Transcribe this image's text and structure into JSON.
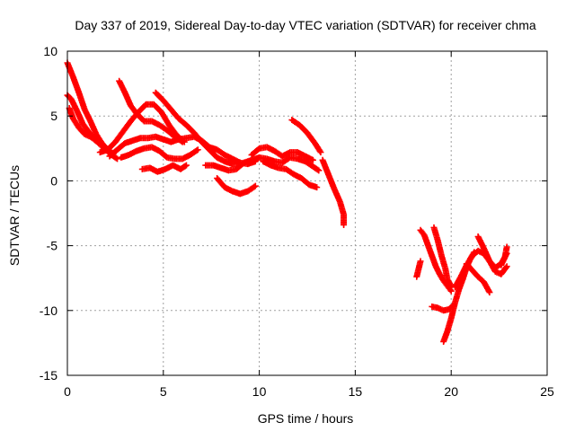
{
  "chart_data": {
    "type": "scatter",
    "title": "Day 337 of 2019, Sidereal Day-to-day VTEC variation (SDTVAR) for receiver chma",
    "xlabel": "GPS time / hours",
    "ylabel": "SDTVAR / TECUs",
    "xlim": [
      0,
      25
    ],
    "ylim": [
      -15,
      10
    ],
    "xticks": [
      0,
      5,
      10,
      15,
      20,
      25
    ],
    "yticks": [
      -15,
      -10,
      -5,
      0,
      5,
      10
    ],
    "grid": true,
    "marker": "+",
    "color": "#ff0000",
    "series": [
      {
        "name": "track-1",
        "x": [
          0.0,
          0.3,
          0.6,
          0.9,
          1.2,
          1.5,
          1.8,
          2.1,
          2.4
        ],
        "y": [
          9.1,
          8.0,
          6.8,
          5.5,
          4.6,
          3.6,
          2.9,
          2.4,
          2.1
        ]
      },
      {
        "name": "track-2",
        "x": [
          0.0,
          0.2,
          0.5,
          0.8,
          1.1,
          1.4,
          1.7,
          2.0,
          2.3,
          2.6
        ],
        "y": [
          6.6,
          6.3,
          5.4,
          4.4,
          3.8,
          3.2,
          2.8,
          2.4,
          2.0,
          1.7
        ]
      },
      {
        "name": "track-3",
        "x": [
          0.1,
          0.3,
          0.6,
          0.9,
          1.2,
          1.5
        ],
        "y": [
          5.6,
          4.8,
          4.1,
          3.6,
          3.4,
          3.1
        ]
      },
      {
        "name": "track-4",
        "x": [
          2.7,
          3.0,
          3.3,
          3.6,
          4.0,
          4.4,
          4.8,
          5.2,
          5.6,
          6.0
        ],
        "y": [
          7.7,
          6.8,
          5.8,
          5.2,
          4.6,
          4.6,
          4.3,
          3.9,
          3.4,
          3.0
        ]
      },
      {
        "name": "track-5",
        "x": [
          1.7,
          2.1,
          2.5,
          2.9,
          3.3,
          3.7,
          4.1,
          4.5,
          4.9,
          5.3,
          5.7,
          6.1
        ],
        "y": [
          2.2,
          2.4,
          3.0,
          3.8,
          4.6,
          5.3,
          5.9,
          5.9,
          5.3,
          4.3,
          3.5,
          3.0
        ]
      },
      {
        "name": "track-6",
        "x": [
          2.2,
          2.6,
          3.0,
          3.4,
          3.8,
          4.2,
          4.6,
          5.0,
          5.4,
          5.8,
          6.2,
          6.6,
          7.0,
          7.4,
          7.8,
          8.2,
          8.6,
          9.0,
          9.4,
          9.8
        ],
        "y": [
          1.9,
          2.4,
          2.9,
          3.1,
          3.3,
          3.3,
          3.4,
          3.2,
          3.0,
          3.2,
          3.3,
          3.4,
          3.1,
          2.6,
          2.4,
          2.0,
          1.7,
          1.4,
          1.3,
          1.5
        ]
      },
      {
        "name": "track-7",
        "x": [
          2.8,
          3.2,
          3.6,
          4.0,
          4.4,
          4.8,
          5.2,
          5.6,
          6.0,
          6.4,
          6.8
        ],
        "y": [
          1.8,
          2.0,
          2.3,
          2.5,
          2.6,
          2.3,
          1.8,
          1.7,
          1.7,
          2.0,
          2.4
        ]
      },
      {
        "name": "track-8",
        "x": [
          3.9,
          4.3,
          4.7,
          5.1,
          5.5,
          5.9,
          6.2
        ],
        "y": [
          0.9,
          1.0,
          0.7,
          0.9,
          1.2,
          0.9,
          1.2
        ]
      },
      {
        "name": "track-9",
        "x": [
          4.6,
          5.0,
          5.4,
          5.8,
          6.2,
          6.6,
          7.0,
          7.4,
          7.8,
          8.2,
          8.6,
          9.0
        ],
        "y": [
          6.8,
          6.2,
          5.5,
          4.8,
          4.3,
          3.7,
          3.0,
          2.4,
          1.8,
          1.5,
          1.3,
          1.4
        ]
      },
      {
        "name": "track-10",
        "x": [
          7.2,
          7.6,
          8.0,
          8.4,
          8.8,
          9.2,
          9.6,
          10.0,
          10.4,
          10.8,
          11.2,
          11.6,
          12.0,
          12.4,
          12.8,
          13.1
        ],
        "y": [
          1.2,
          1.2,
          1.0,
          0.8,
          0.9,
          1.4,
          1.6,
          1.8,
          1.7,
          1.5,
          1.4,
          1.8,
          1.7,
          1.5,
          1.1,
          0.8
        ]
      },
      {
        "name": "track-11",
        "x": [
          7.8,
          8.2,
          8.6,
          9.0,
          9.4,
          9.8
        ],
        "y": [
          0.2,
          -0.5,
          -0.8,
          -1.0,
          -0.8,
          -0.4
        ]
      },
      {
        "name": "track-12",
        "x": [
          9.6,
          10.0,
          10.4,
          10.8,
          11.2,
          11.6,
          12.0,
          12.4,
          12.8
        ],
        "y": [
          2.0,
          2.5,
          2.6,
          2.3,
          1.9,
          2.2,
          2.2,
          1.9,
          1.6
        ]
      },
      {
        "name": "track-13",
        "x": [
          10.2,
          10.6,
          11.0,
          11.4,
          11.8,
          12.2,
          12.6,
          13.0
        ],
        "y": [
          1.5,
          1.2,
          1.0,
          0.9,
          0.5,
          0.2,
          -0.3,
          -0.5
        ]
      },
      {
        "name": "track-14",
        "x": [
          11.7,
          12.1,
          12.5,
          12.9,
          13.2
        ],
        "y": [
          4.7,
          4.3,
          3.7,
          2.9,
          2.2
        ]
      },
      {
        "name": "track-15",
        "x": [
          13.3,
          13.6,
          13.9,
          14.2,
          14.4,
          14.4
        ],
        "y": [
          1.6,
          0.5,
          -0.6,
          -1.6,
          -2.6,
          -3.4
        ]
      },
      {
        "name": "track-16",
        "x": [
          18.4,
          18.6,
          18.8,
          19.0,
          19.2,
          19.4,
          19.6,
          19.8,
          20.0
        ],
        "y": [
          -3.8,
          -4.2,
          -5.0,
          -5.8,
          -6.6,
          -7.2,
          -7.7,
          -8.1,
          -8.5
        ]
      },
      {
        "name": "track-17",
        "x": [
          19.1,
          19.3,
          19.5,
          19.7,
          19.8,
          20.0
        ],
        "y": [
          -3.6,
          -4.6,
          -5.8,
          -6.8,
          -7.6,
          -8.1
        ]
      },
      {
        "name": "track-18",
        "x": [
          19.0,
          19.3,
          19.6,
          19.9,
          20.1
        ],
        "y": [
          -9.7,
          -9.8,
          -10.0,
          -9.9,
          -9.6
        ]
      },
      {
        "name": "track-19",
        "x": [
          19.6,
          19.8,
          20.0,
          20.2,
          20.4,
          20.6,
          20.8,
          21.0,
          21.2
        ],
        "y": [
          -12.4,
          -11.6,
          -10.6,
          -9.4,
          -8.4,
          -7.6,
          -6.7,
          -6.0,
          -5.5
        ]
      },
      {
        "name": "track-20",
        "x": [
          20.2,
          20.5,
          20.8,
          21.1,
          21.4,
          21.7,
          22.0,
          22.3,
          22.6,
          22.9
        ],
        "y": [
          -8.2,
          -7.4,
          -6.5,
          -5.8,
          -5.4,
          -5.6,
          -6.2,
          -6.7,
          -6.4,
          -5.6
        ]
      },
      {
        "name": "track-21",
        "x": [
          21.4,
          21.7,
          22.0,
          22.3,
          22.6,
          22.9
        ],
        "y": [
          -4.3,
          -5.2,
          -6.2,
          -7.0,
          -7.2,
          -6.6
        ]
      },
      {
        "name": "track-22",
        "x": [
          20.8,
          21.1,
          21.4,
          21.7,
          22.0
        ],
        "y": [
          -6.4,
          -6.9,
          -7.4,
          -7.8,
          -8.6
        ]
      },
      {
        "name": "track-23",
        "x": [
          18.2,
          18.4
        ],
        "y": [
          -7.4,
          -6.2
        ]
      },
      {
        "name": "track-24",
        "x": [
          22.6,
          22.8,
          22.9
        ],
        "y": [
          -6.5,
          -5.9,
          -5.1
        ]
      }
    ]
  }
}
